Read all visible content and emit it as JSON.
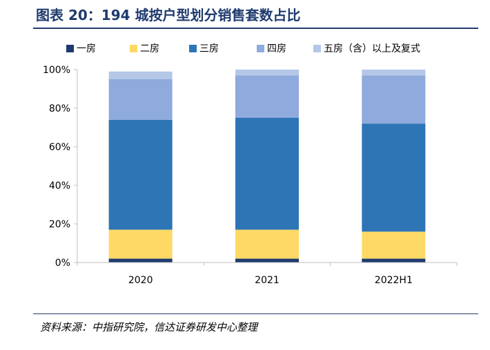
{
  "title": "图表 20：194 城按户型划分销售套数占比",
  "source": "资料来源：中指研究院，信达证券研发中心整理",
  "chart_data": {
    "type": "bar",
    "stacked": true,
    "categories": [
      "2020",
      "2021",
      "2022H1"
    ],
    "series": [
      {
        "name": "一房",
        "color": "#1f3a6e",
        "values": [
          2,
          2,
          2
        ]
      },
      {
        "name": "二房",
        "color": "#ffd966",
        "values": [
          15,
          15,
          14
        ]
      },
      {
        "name": "三房",
        "color": "#2e75b6",
        "values": [
          57,
          58,
          56
        ]
      },
      {
        "name": "四房",
        "color": "#8faadc",
        "values": [
          21,
          22,
          25
        ]
      },
      {
        "name": "五房（含）以上及复式",
        "color": "#b4c7e7",
        "values": [
          4,
          3,
          3
        ]
      }
    ],
    "ylim": [
      0,
      100
    ],
    "yticks": [
      "0%",
      "20%",
      "40%",
      "60%",
      "80%",
      "100%"
    ],
    "legend_position": "top",
    "grid": false
  }
}
